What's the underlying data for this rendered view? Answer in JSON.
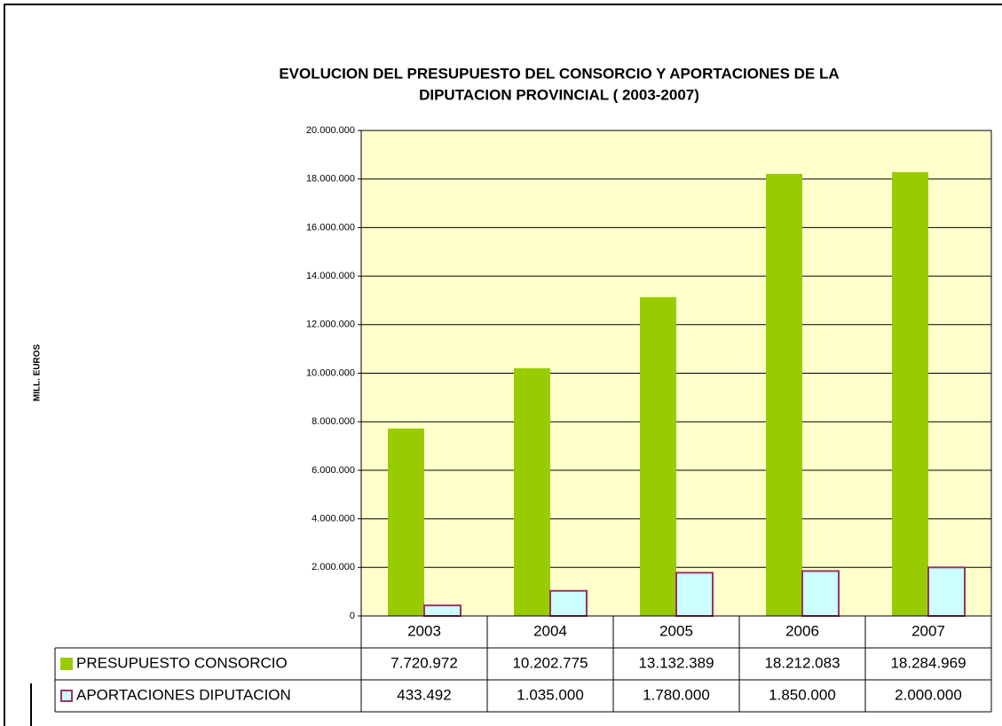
{
  "chart_data": {
    "type": "bar",
    "title": [
      "EVOLUCION DEL PRESUPUESTO DEL CONSORCIO Y APORTACIONES DE LA",
      "DIPUTACION PROVINCIAL ( 2003-2007)"
    ],
    "y_label": "MILL. EUROS",
    "categories": [
      "2003",
      "2004",
      "2005",
      "2006",
      "2007"
    ],
    "series": [
      {
        "name": "PRESUPUESTO CONSORCIO",
        "color": "#99cc00",
        "values": [
          7720972,
          10202775,
          13132389,
          18212083,
          18284969
        ],
        "value_labels": [
          "7.720.972",
          "10.202.775",
          "13.132.389",
          "18.212.083",
          "18.284.969"
        ]
      },
      {
        "name": "APORTACIONES DIPUTACION",
        "color": "#ccffff",
        "border": "#993366",
        "values": [
          433492,
          1035000,
          1780000,
          1850000,
          2000000
        ],
        "value_labels": [
          "433.492",
          "1.035.000",
          "1.780.000",
          "1.850.000",
          "2.000.000"
        ]
      }
    ],
    "ylim": [
      0,
      20000000
    ],
    "yticks": [
      0,
      {
        "value": 2000000,
        "label": "2.000.000"
      },
      {
        "value": 4000000,
        "label": "4.000.000"
      },
      {
        "value": 6000000,
        "label": "6.000.000"
      },
      {
        "value": 8000000,
        "label": "8.000.000"
      },
      {
        "value": 10000000,
        "label": "10.000.000"
      },
      {
        "value": 12000000,
        "label": "12.000.000"
      },
      {
        "value": 14000000,
        "label": "14.000.000"
      },
      {
        "value": 16000000,
        "label": "16.000.000"
      },
      {
        "value": 18000000,
        "label": "18.000.000"
      },
      {
        "value": 20000000,
        "label": "20.000.000"
      }
    ],
    "grid": true,
    "plot_background": "#ffffcc"
  }
}
